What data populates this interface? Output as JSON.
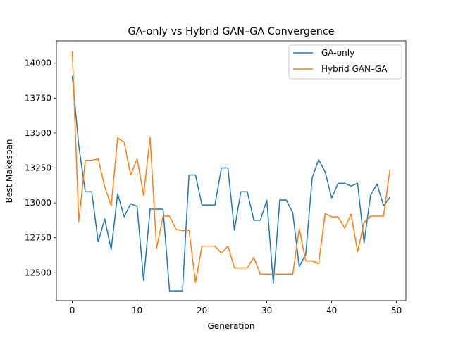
{
  "chart_data": {
    "type": "line",
    "title": "GA-only vs Hybrid GAN–GA Convergence",
    "xlabel": "Generation",
    "ylabel": "Best Makespan",
    "xlim": [
      -2.45,
      51.45
    ],
    "ylim": [
      12300,
      14160
    ],
    "xticks": [
      0,
      10,
      20,
      30,
      40,
      50
    ],
    "yticks": [
      12500,
      12750,
      13000,
      13250,
      13500,
      13750,
      14000
    ],
    "grid": false,
    "legend": "top-right",
    "x": [
      0,
      1,
      2,
      3,
      4,
      5,
      6,
      7,
      8,
      9,
      10,
      11,
      12,
      13,
      14,
      15,
      16,
      17,
      18,
      19,
      20,
      21,
      22,
      23,
      24,
      25,
      26,
      27,
      28,
      29,
      30,
      31,
      32,
      33,
      34,
      35,
      36,
      37,
      38,
      39,
      40,
      41,
      42,
      43,
      44,
      45,
      46,
      47,
      48,
      49
    ],
    "series": [
      {
        "name": "GA-only",
        "color": "#1f77b4",
        "values": [
          13910,
          13410,
          13080,
          13080,
          12720,
          12885,
          12665,
          13065,
          12900,
          12995,
          12975,
          12445,
          12955,
          12955,
          12955,
          12370,
          12370,
          12370,
          13200,
          13200,
          12985,
          12985,
          12985,
          13250,
          13250,
          12805,
          13080,
          13080,
          12875,
          12875,
          13020,
          12425,
          13020,
          13020,
          12930,
          12545,
          12630,
          13180,
          13310,
          13220,
          13035,
          13140,
          13140,
          13120,
          13140,
          12715,
          13055,
          13135,
          12980,
          13040
        ]
      },
      {
        "name": "Hybrid GAN–GA",
        "color": "#ff7f0e",
        "values": [
          14085,
          12865,
          13305,
          13305,
          13315,
          13115,
          12980,
          13465,
          13435,
          13200,
          13315,
          13055,
          13470,
          12675,
          12905,
          12905,
          12810,
          12800,
          12805,
          12430,
          12690,
          12690,
          12690,
          12640,
          12690,
          12535,
          12535,
          12535,
          12610,
          12490,
          12490,
          12490,
          12490,
          12490,
          12490,
          12815,
          12585,
          12585,
          12565,
          12925,
          12900,
          12900,
          12820,
          12920,
          12650,
          12860,
          12905,
          12905,
          12905,
          13240
        ]
      }
    ]
  }
}
